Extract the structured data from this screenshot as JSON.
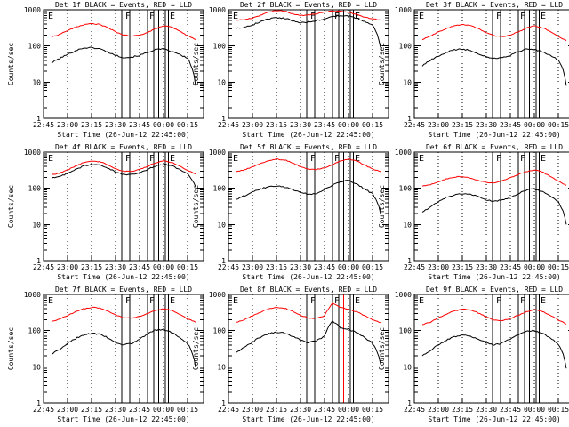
{
  "chart_data": [
    {
      "type": "line",
      "title": "Det 1f BLACK = Events, RED = LLD",
      "ylabel": "Counts/sec",
      "xlabel": "Start Time (26-Jun-12 22:45:00)",
      "log_y": true,
      "x": [
        "22:50",
        "22:55",
        "23:00",
        "23:05",
        "23:10",
        "23:15",
        "23:20",
        "23:25",
        "23:30",
        "23:35",
        "23:40",
        "23:45",
        "23:50",
        "23:55",
        "00:00",
        "00:05",
        "00:10",
        "00:15",
        "00:20"
      ],
      "series": [
        {
          "name": "Events",
          "color": "#000000",
          "values": [
            34,
            45,
            58,
            74,
            88,
            90,
            84,
            68,
            55,
            48,
            49,
            55,
            66,
            80,
            82,
            70,
            58,
            45,
            8
          ]
        },
        {
          "name": "LLD",
          "color": "#ff0000",
          "values": [
            175,
            210,
            265,
            325,
            385,
            415,
            395,
            320,
            245,
            200,
            185,
            200,
            235,
            300,
            360,
            330,
            255,
            190,
            150
          ]
        }
      ],
      "marker_times": [
        "23:34",
        "23:39",
        "23:50",
        "23:54",
        "23:57",
        "00:01",
        "00:03"
      ],
      "marker_labels": [
        "E",
        "F",
        "F",
        "E"
      ]
    },
    {
      "type": "line",
      "title": "Det 2f BLACK = Events, RED = LLD",
      "ylabel": "Counts/sec",
      "xlabel": "Start Time (26-Jun-12 22:45:00)",
      "log_y": true,
      "x": [
        "22:50",
        "22:55",
        "23:00",
        "23:05",
        "23:10",
        "23:15",
        "23:20",
        "23:25",
        "23:30",
        "23:35",
        "23:40",
        "23:45",
        "23:50",
        "23:55",
        "00:00",
        "00:05",
        "00:10",
        "00:15",
        "00:20"
      ],
      "series": [
        {
          "name": "Events",
          "color": "#000000",
          "values": [
            310,
            330,
            380,
            470,
            560,
            610,
            585,
            500,
            440,
            460,
            500,
            560,
            640,
            700,
            680,
            590,
            470,
            370,
            90
          ]
        },
        {
          "name": "LLD",
          "color": "#ff0000",
          "values": [
            520,
            530,
            590,
            710,
            850,
            960,
            920,
            780,
            690,
            720,
            780,
            860,
            920,
            920,
            860,
            740,
            620,
            560,
            520
          ]
        }
      ],
      "marker_times": [
        "23:34",
        "23:39",
        "23:50",
        "23:54",
        "23:57",
        "00:01",
        "00:03"
      ],
      "marker_labels": [
        "E",
        "F",
        "F",
        "E"
      ]
    },
    {
      "type": "line",
      "title": "Det 3f BLACK = Events, RED = LLD",
      "ylabel": "Counts/sec",
      "xlabel": "Start Time (26-Jun-12 22:45:00)",
      "log_y": true,
      "x": [
        "22:50",
        "22:55",
        "23:00",
        "23:05",
        "23:10",
        "23:15",
        "23:20",
        "23:25",
        "23:30",
        "23:35",
        "23:40",
        "23:45",
        "23:50",
        "23:55",
        "00:00",
        "00:05",
        "00:10",
        "00:15",
        "00:20"
      ],
      "series": [
        {
          "name": "Events",
          "color": "#000000",
          "values": [
            28,
            40,
            52,
            66,
            78,
            82,
            76,
            61,
            50,
            45,
            48,
            55,
            70,
            82,
            80,
            68,
            54,
            40,
            8
          ]
        },
        {
          "name": "LLD",
          "color": "#ff0000",
          "values": [
            150,
            185,
            240,
            300,
            360,
            390,
            370,
            300,
            230,
            190,
            180,
            200,
            245,
            310,
            360,
            320,
            245,
            180,
            140
          ]
        }
      ],
      "marker_times": [
        "23:34",
        "23:39",
        "23:50",
        "23:54",
        "23:57",
        "00:01",
        "00:03"
      ],
      "marker_labels": [
        "E",
        "F",
        "F",
        "E"
      ]
    },
    {
      "type": "line",
      "title": "Det 4f BLACK = Events, RED = LLD",
      "ylabel": "Counts/sec",
      "xlabel": "Start Time (26-Jun-12 22:45:00)",
      "log_y": true,
      "x": [
        "22:50",
        "22:55",
        "23:00",
        "23:05",
        "23:10",
        "23:15",
        "23:20",
        "23:25",
        "23:30",
        "23:35",
        "23:40",
        "23:45",
        "23:50",
        "23:55",
        "00:00",
        "00:05",
        "00:10",
        "00:15",
        "00:20"
      ],
      "series": [
        {
          "name": "Events",
          "color": "#000000",
          "values": [
            190,
            210,
            260,
            330,
            410,
            460,
            440,
            360,
            280,
            240,
            240,
            270,
            330,
            410,
            460,
            420,
            330,
            250,
            110
          ]
        },
        {
          "name": "LLD",
          "color": "#ff0000",
          "values": [
            240,
            260,
            320,
            410,
            510,
            570,
            545,
            450,
            345,
            295,
            295,
            330,
            405,
            505,
            570,
            520,
            410,
            310,
            250
          ]
        }
      ],
      "marker_times": [
        "23:34",
        "23:39",
        "23:50",
        "23:54",
        "23:57",
        "00:01",
        "00:03"
      ],
      "marker_labels": [
        "E",
        "F",
        "F",
        "E"
      ]
    },
    {
      "type": "line",
      "title": "Det 5f BLACK = Events, RED = LLD",
      "ylabel": "Counts/sec",
      "xlabel": "Start Time (26-Jun-12 22:45:00)",
      "log_y": true,
      "x": [
        "22:50",
        "22:55",
        "23:00",
        "23:05",
        "23:10",
        "23:15",
        "23:20",
        "23:25",
        "23:30",
        "23:35",
        "23:40",
        "23:45",
        "23:50",
        "23:55",
        "00:00",
        "00:05",
        "00:10",
        "00:15",
        "00:20"
      ],
      "series": [
        {
          "name": "Events",
          "color": "#000000",
          "values": [
            50,
            62,
            78,
            95,
            110,
            115,
            108,
            92,
            78,
            68,
            72,
            92,
            120,
            150,
            165,
            130,
            95,
            70,
            20
          ]
        },
        {
          "name": "LLD",
          "color": "#ff0000",
          "values": [
            290,
            320,
            390,
            480,
            580,
            640,
            610,
            500,
            395,
            335,
            330,
            365,
            450,
            560,
            640,
            570,
            440,
            340,
            290
          ]
        }
      ],
      "marker_times": [
        "23:34",
        "23:39",
        "23:50",
        "23:54",
        "23:57",
        "00:01",
        "00:03"
      ],
      "marker_labels": [
        "E",
        "F",
        "F",
        "E"
      ]
    },
    {
      "type": "line",
      "title": "Det 6f BLACK = Events, RED = LLD",
      "ylabel": "Counts/sec",
      "xlabel": "Start Time (26-Jun-12 22:45:00)",
      "log_y": true,
      "x": [
        "22:50",
        "22:55",
        "23:00",
        "23:05",
        "23:10",
        "23:15",
        "23:20",
        "23:25",
        "23:30",
        "23:35",
        "23:40",
        "23:45",
        "23:50",
        "23:55",
        "00:00",
        "00:05",
        "00:10",
        "00:15",
        "00:20"
      ],
      "series": [
        {
          "name": "Events",
          "color": "#000000",
          "values": [
            22,
            30,
            42,
            55,
            66,
            72,
            70,
            58,
            48,
            44,
            48,
            56,
            70,
            90,
            96,
            80,
            60,
            42,
            10
          ]
        },
        {
          "name": "LLD",
          "color": "#ff0000",
          "values": [
            115,
            125,
            150,
            180,
            205,
            210,
            190,
            165,
            145,
            140,
            160,
            195,
            240,
            290,
            325,
            280,
            210,
            155,
            120
          ]
        }
      ],
      "marker_times": [
        "23:34",
        "23:39",
        "23:50",
        "23:54",
        "23:57",
        "00:01",
        "00:03"
      ],
      "marker_labels": [
        "E",
        "F",
        "F",
        "E"
      ]
    },
    {
      "type": "line",
      "title": "Det 7f BLACK = Events, RED = LLD",
      "ylabel": "Counts/sec",
      "xlabel": "Start Time (26-Jun-12 22:45:00)",
      "log_y": true,
      "x": [
        "22:50",
        "22:55",
        "23:00",
        "23:05",
        "23:10",
        "23:15",
        "23:20",
        "23:25",
        "23:30",
        "23:35",
        "23:40",
        "23:45",
        "23:50",
        "23:55",
        "00:00",
        "00:05",
        "00:10",
        "00:15",
        "00:20"
      ],
      "series": [
        {
          "name": "Events",
          "color": "#000000",
          "values": [
            22,
            30,
            44,
            60,
            76,
            84,
            80,
            64,
            48,
            40,
            44,
            58,
            80,
            104,
            108,
            88,
            64,
            44,
            10
          ]
        },
        {
          "name": "LLD",
          "color": "#ff0000",
          "values": [
            175,
            205,
            260,
            330,
            400,
            440,
            420,
            345,
            270,
            225,
            220,
            245,
            295,
            360,
            400,
            360,
            280,
            210,
            170
          ]
        }
      ],
      "marker_times": [
        "23:34",
        "23:39",
        "23:50",
        "23:54",
        "23:57",
        "00:01",
        "00:03"
      ],
      "marker_labels": [
        "E",
        "F",
        "F",
        "E"
      ]
    },
    {
      "type": "line",
      "title": "Det 8f BLACK = Events, RED = LLD",
      "ylabel": "Counts/sec",
      "xlabel": "Start Time (26-Jun-12 22:45:00)",
      "log_y": true,
      "x": [
        "22:50",
        "22:55",
        "23:00",
        "23:05",
        "23:10",
        "23:15",
        "23:20",
        "23:25",
        "23:30",
        "23:35",
        "23:40",
        "23:45",
        "23:50",
        "23:55",
        "00:00",
        "00:05",
        "00:10",
        "00:15",
        "00:20"
      ],
      "series": [
        {
          "name": "Events",
          "color": "#000000",
          "values": [
            25,
            34,
            48,
            66,
            82,
            90,
            86,
            70,
            54,
            46,
            52,
            70,
            180,
            120,
            110,
            88,
            64,
            44,
            12
          ]
        },
        {
          "name": "LLD",
          "color": "#ff0000",
          "values": [
            170,
            200,
            255,
            325,
            395,
            435,
            415,
            340,
            265,
            220,
            220,
            255,
            560,
            440,
            380,
            330,
            260,
            200,
            165
          ]
        }
      ],
      "marker_times": [
        "23:34",
        "23:39",
        "23:50",
        "23:54",
        "23:57",
        "00:01",
        "00:03"
      ],
      "marker_labels": [
        "E",
        "F",
        "F",
        "E"
      ]
    },
    {
      "type": "line",
      "title": "Det 9f BLACK = Events, RED = LLD",
      "ylabel": "Counts/sec",
      "xlabel": "Start Time (26-Jun-12 22:45:00)",
      "log_y": true,
      "x": [
        "22:50",
        "22:55",
        "23:00",
        "23:05",
        "23:10",
        "23:15",
        "23:20",
        "23:25",
        "23:30",
        "23:35",
        "23:40",
        "23:45",
        "23:50",
        "23:55",
        "00:00",
        "00:05",
        "00:10",
        "00:15",
        "00:20"
      ],
      "series": [
        {
          "name": "Events",
          "color": "#000000",
          "values": [
            20,
            28,
            40,
            54,
            68,
            74,
            71,
            58,
            46,
            40,
            45,
            58,
            76,
            95,
            100,
            84,
            62,
            42,
            9
          ]
        },
        {
          "name": "LLD",
          "color": "#ff0000",
          "values": [
            145,
            170,
            220,
            285,
            350,
            390,
            370,
            305,
            235,
            195,
            190,
            215,
            265,
            330,
            380,
            340,
            260,
            195,
            150
          ]
        }
      ],
      "marker_times": [
        "23:34",
        "23:39",
        "23:50",
        "23:54",
        "23:57",
        "00:01",
        "00:03"
      ],
      "marker_labels": [
        "E",
        "F",
        "F",
        "E"
      ]
    }
  ],
  "axis": {
    "x_ticks": [
      "22:45",
      "23:00",
      "23:15",
      "23:30",
      "23:45",
      "00:00",
      "00:15"
    ],
    "y_ticks": [
      "1",
      "10",
      "100",
      "1000"
    ],
    "y_range": [
      1,
      1000
    ]
  }
}
